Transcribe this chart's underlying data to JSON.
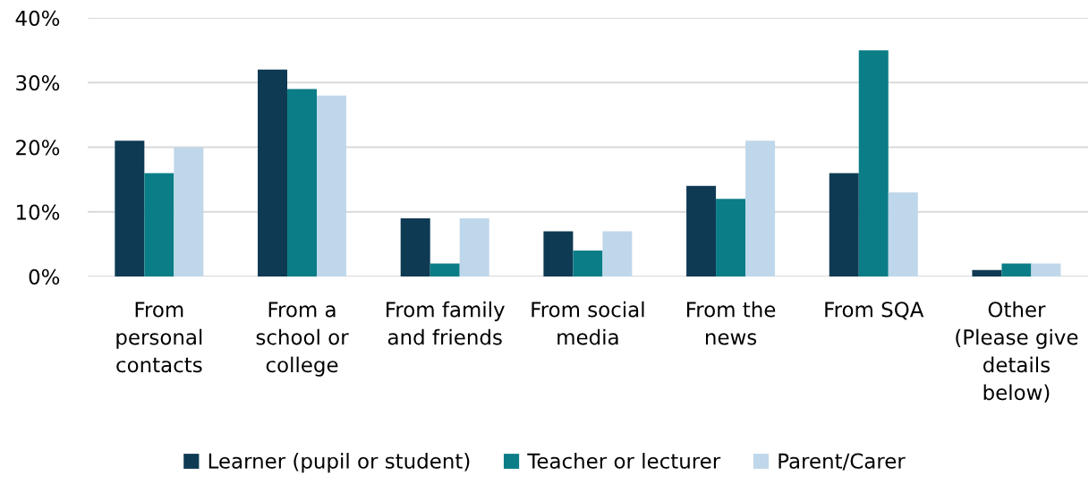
{
  "chart_data": {
    "type": "bar",
    "categories": [
      "From\npersonal\ncontacts",
      "From a\nschool or\ncollege",
      "From family\nand friends",
      "From social\nmedia",
      "From the\nnews",
      "From SQA",
      "Other\n(Please give\ndetails\nbelow)"
    ],
    "series": [
      {
        "name": "Learner (pupil or student)",
        "color": "#0e3a53",
        "values": [
          21,
          32,
          9,
          7,
          14,
          16,
          1
        ]
      },
      {
        "name": "Teacher or lecturer",
        "color": "#0a7d87",
        "values": [
          16,
          29,
          2,
          4,
          12,
          35,
          2
        ]
      },
      {
        "name": "Parent/Carer",
        "color": "#bfd7ea",
        "values": [
          20,
          28,
          9,
          7,
          21,
          13,
          2
        ]
      }
    ],
    "ylim": [
      0,
      40
    ],
    "yticks": [
      {
        "value": 0,
        "label": "0%"
      },
      {
        "value": 10,
        "label": "10%"
      },
      {
        "value": 20,
        "label": "20%"
      },
      {
        "value": 30,
        "label": "30%"
      },
      {
        "value": 40,
        "label": "40%"
      }
    ],
    "grid": "y",
    "legend": "bottom"
  }
}
